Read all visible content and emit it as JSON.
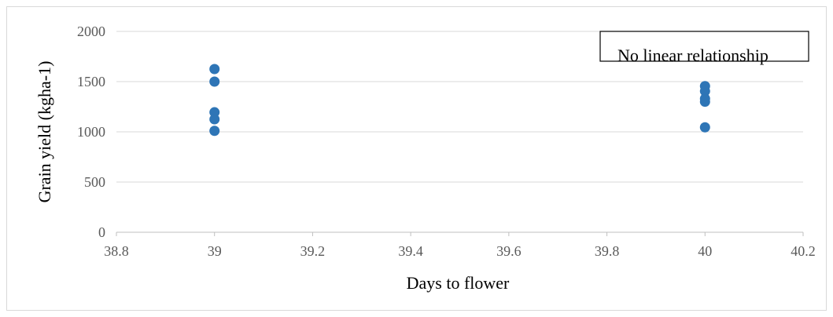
{
  "chart_data": {
    "type": "scatter",
    "title": "",
    "xlabel": "Days to flower",
    "ylabel": "Grain yield (kgha-1)",
    "xlim": [
      38.8,
      40.2
    ],
    "ylim": [
      0,
      2000
    ],
    "x_ticks": [
      38.8,
      39,
      39.2,
      39.4,
      39.6,
      39.8,
      40,
      40.2
    ],
    "x_tick_labels": [
      "38.8",
      "39",
      "39.2",
      "39.4",
      "39.6",
      "39.8",
      "40",
      "40.2"
    ],
    "y_ticks": [
      0,
      500,
      1000,
      1500,
      2000
    ],
    "y_tick_labels": [
      "0",
      "500",
      "1000",
      "1500",
      "2000"
    ],
    "grid": "horizontal",
    "legend": "none",
    "marker_color": "#2e75b6",
    "series": [
      {
        "points": [
          {
            "x": 39,
            "y": 1625
          },
          {
            "x": 39,
            "y": 1500
          },
          {
            "x": 39,
            "y": 1195
          },
          {
            "x": 39,
            "y": 1125
          },
          {
            "x": 39,
            "y": 1010
          },
          {
            "x": 40,
            "y": 1455
          },
          {
            "x": 40,
            "y": 1405
          },
          {
            "x": 40,
            "y": 1330
          },
          {
            "x": 40,
            "y": 1300
          },
          {
            "x": 40,
            "y": 1045
          }
        ]
      }
    ],
    "annotation": "No linear relationship"
  }
}
